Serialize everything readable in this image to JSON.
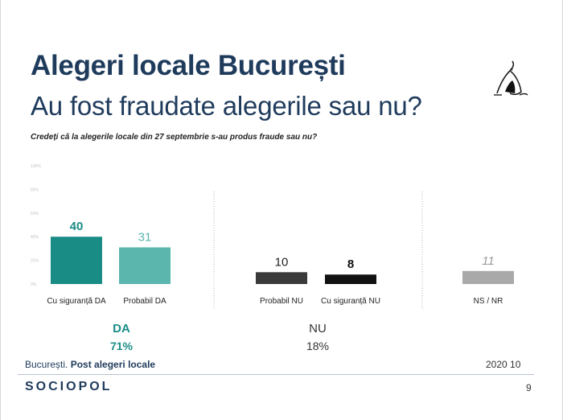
{
  "header": {
    "title": "Alegeri locale București",
    "subtitle": "Au fost fraudate alegerile sau nu?",
    "question": "Credeți că la alegerile locale din 27 septembrie s-au produs fraude sau nu?"
  },
  "chart_data": {
    "type": "bar",
    "categories": [
      "Cu siguranță DA",
      "Probabil DA",
      "Probabil NU",
      "Cu siguranță NU",
      "NS / NR"
    ],
    "values": [
      40,
      31,
      10,
      8,
      11
    ],
    "ylim": [
      0,
      100
    ],
    "yticks": [
      "0%",
      "20%",
      "40%",
      "60%",
      "80%",
      "100%"
    ],
    "bar_colors": [
      "#1a8c86",
      "#5bb6ad",
      "#3a3a3a",
      "#111111",
      "#a9a9a9"
    ],
    "value_label_colors": [
      "#1a8c86",
      "#5bb6ad",
      "#222222",
      "#111111",
      "#9a9a9a"
    ],
    "groups": [
      {
        "label": "DA",
        "total": "71%",
        "color": "#1a8c86"
      },
      {
        "label": "NU",
        "total": "18%",
        "color": "#333333"
      }
    ],
    "grid": false
  },
  "footer": {
    "place": "București.",
    "source": "Post alegeri locale",
    "date": "2020 10",
    "brand": "SOCIOPOL",
    "page": "9"
  }
}
